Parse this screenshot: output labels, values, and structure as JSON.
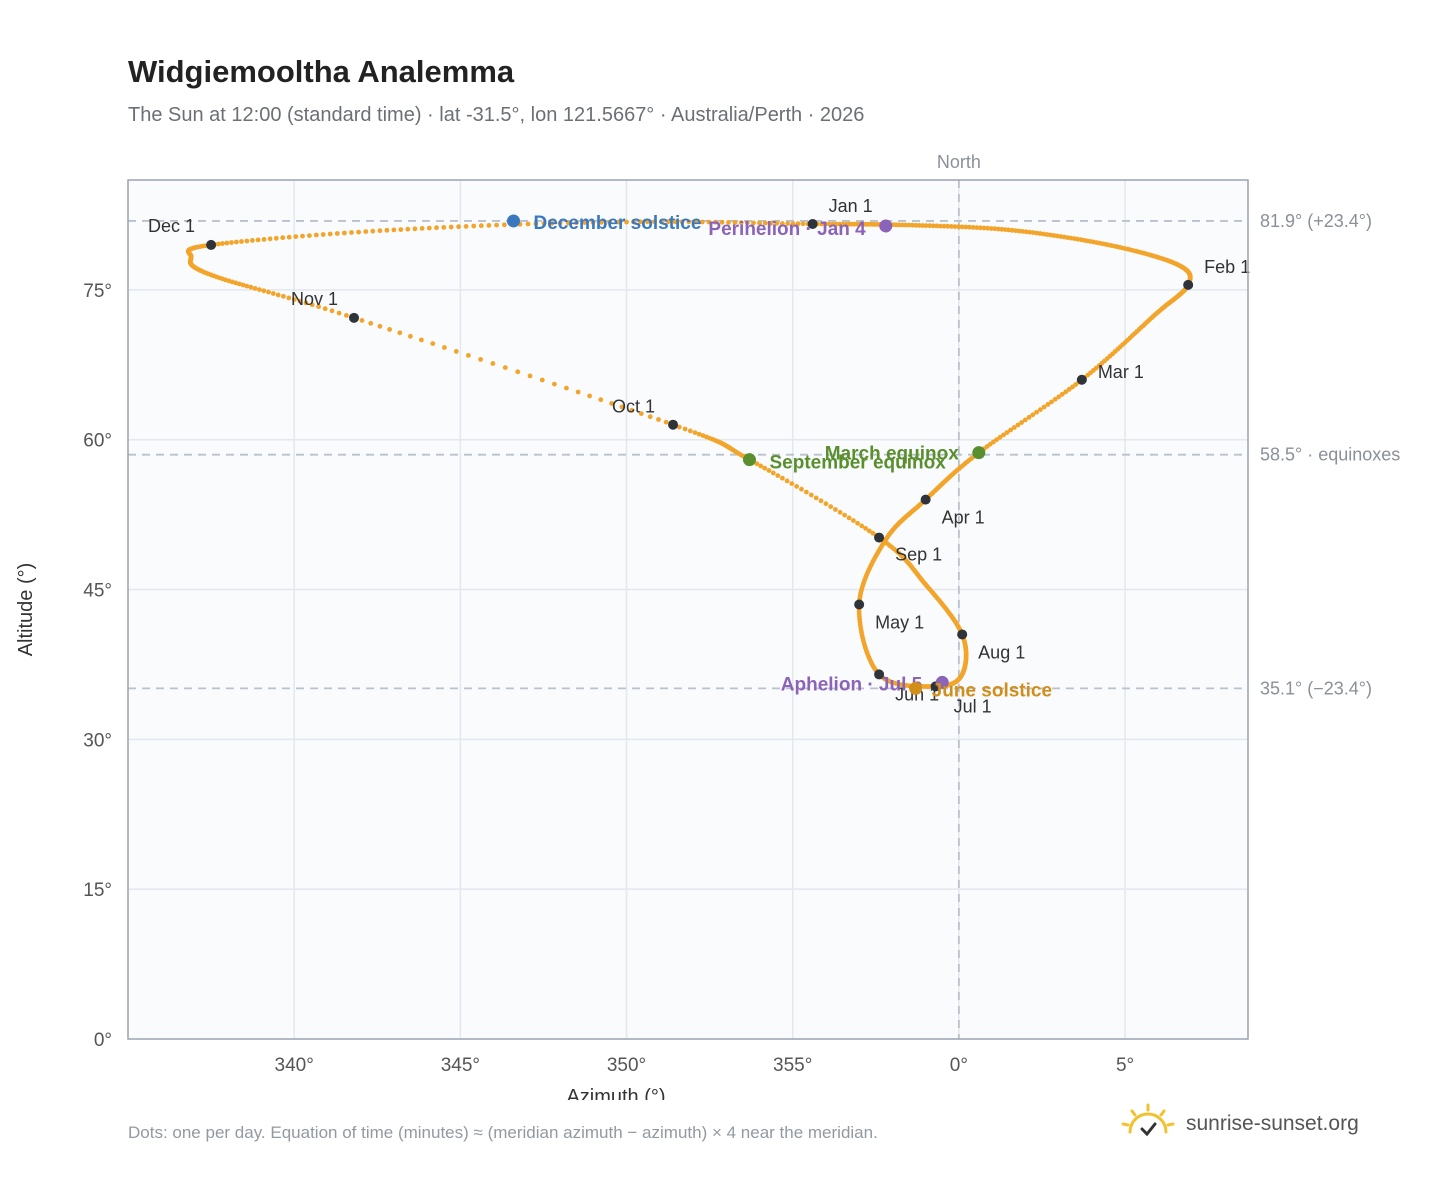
{
  "header": {
    "title": "Widgiemooltha Analemma",
    "subtitle": "The Sun at 12:00 (standard time) · lat -31.5°, lon 121.5667° · Australia/Perth · 2026"
  },
  "footer": {
    "note": "Dots: one per day. Equation of time (minutes) ≈ (meridian azimuth − azimuth) × 4 near the meridian.",
    "brand": "sunrise-sunset.org",
    "brand_icon": "sun-logo-icon"
  },
  "chart_data": {
    "type": "scatter",
    "xlabel": "Azimuth (°)",
    "ylabel": "Altitude (°)",
    "xlim": [
      -25,
      8.7
    ],
    "ylim": [
      0,
      86
    ],
    "x_ticks": [
      -20,
      -15,
      -10,
      -5,
      0,
      5
    ],
    "x_tick_labels": [
      "340°",
      "345°",
      "350°",
      "355°",
      "0°",
      "5°"
    ],
    "y_ticks": [
      0,
      15,
      30,
      45,
      60,
      75
    ],
    "y_tick_labels": [
      "0°",
      "15°",
      "30°",
      "45°",
      "60°",
      "75°"
    ],
    "grid": true,
    "meridian": {
      "x": 0,
      "label": "North"
    },
    "reference_lines": [
      {
        "y": 81.9,
        "label": "81.9° (+23.4°)"
      },
      {
        "y": 58.5,
        "label": "58.5° · equinoxes"
      },
      {
        "y": 35.1,
        "label": "35.1° (−23.4°)"
      }
    ],
    "path_color": "#f2a52a",
    "path_knots": [
      [
        -4.4,
        81.6
      ],
      [
        -1.7,
        81.5
      ],
      [
        1.5,
        81.0
      ],
      [
        4.5,
        79.5
      ],
      [
        6.6,
        77.5
      ],
      [
        6.9,
        75.5
      ],
      [
        5.9,
        72.5
      ],
      [
        3.7,
        66.0
      ],
      [
        0.6,
        58.7
      ],
      [
        -1.0,
        54.0
      ],
      [
        -2.2,
        50.0
      ],
      [
        -3.0,
        43.5
      ],
      [
        -2.4,
        36.5
      ],
      [
        -0.7,
        35.3
      ],
      [
        0.1,
        36.5
      ],
      [
        0.1,
        40.5
      ],
      [
        -1.0,
        45.5
      ],
      [
        -2.4,
        50.2
      ],
      [
        -6.3,
        58.0
      ],
      [
        -8.6,
        61.5
      ],
      [
        -18.2,
        72.2
      ],
      [
        -22.5,
        76.5
      ],
      [
        -23.1,
        78.3
      ],
      [
        -22.5,
        79.5
      ],
      [
        -17.0,
        81.0
      ],
      [
        -10.0,
        81.8
      ],
      [
        -4.4,
        81.6
      ]
    ],
    "month_markers": [
      {
        "label": "Jan 1",
        "x": -4.4,
        "y": 81.6
      },
      {
        "label": "Feb 1",
        "x": 6.9,
        "y": 75.5
      },
      {
        "label": "Mar 1",
        "x": 3.7,
        "y": 66.0
      },
      {
        "label": "Apr 1",
        "x": -1.0,
        "y": 54.0
      },
      {
        "label": "May 1",
        "x": -3.0,
        "y": 43.5
      },
      {
        "label": "Jun 1",
        "x": -2.4,
        "y": 36.5
      },
      {
        "label": "Jul 1",
        "x": -0.7,
        "y": 35.3
      },
      {
        "label": "Aug 1",
        "x": 0.1,
        "y": 40.5
      },
      {
        "label": "Sep 1",
        "x": -2.4,
        "y": 50.2
      },
      {
        "label": "Oct 1",
        "x": -8.6,
        "y": 61.5
      },
      {
        "label": "Nov 1",
        "x": -18.2,
        "y": 72.2
      },
      {
        "label": "Dec 1",
        "x": -22.5,
        "y": 79.5
      }
    ],
    "events": [
      {
        "label": "December solstice",
        "x": -13.4,
        "y": 81.9,
        "color": "#3a78c0"
      },
      {
        "label": "Perihelion · Jan 4",
        "x": -2.2,
        "y": 81.4,
        "color": "#8b63b8"
      },
      {
        "label": "March equinox",
        "x": 0.6,
        "y": 58.7,
        "color": "#5a8f2e"
      },
      {
        "label": "September equinox",
        "x": -6.3,
        "y": 58.0,
        "color": "#5a8f2e"
      },
      {
        "label": "Aphelion · Jul 5",
        "x": -0.5,
        "y": 35.7,
        "color": "#8b63b8"
      },
      {
        "label": "June solstice",
        "x": -1.3,
        "y": 35.1,
        "color": "#d08e1a"
      }
    ]
  }
}
